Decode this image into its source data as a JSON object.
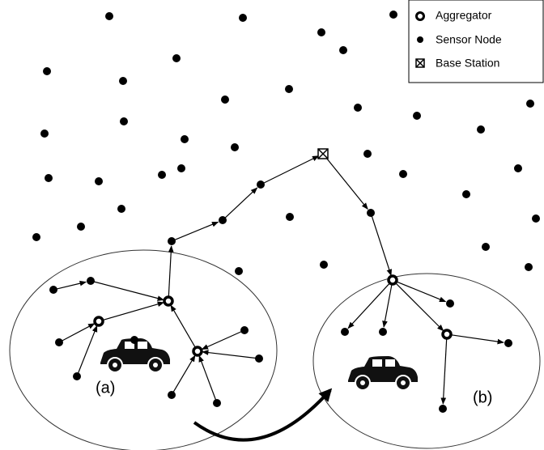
{
  "legend": {
    "items": [
      "Aggregator",
      "Sensor Node",
      "Base Station"
    ]
  },
  "regions": [
    "(a)",
    "(b)"
  ]
}
